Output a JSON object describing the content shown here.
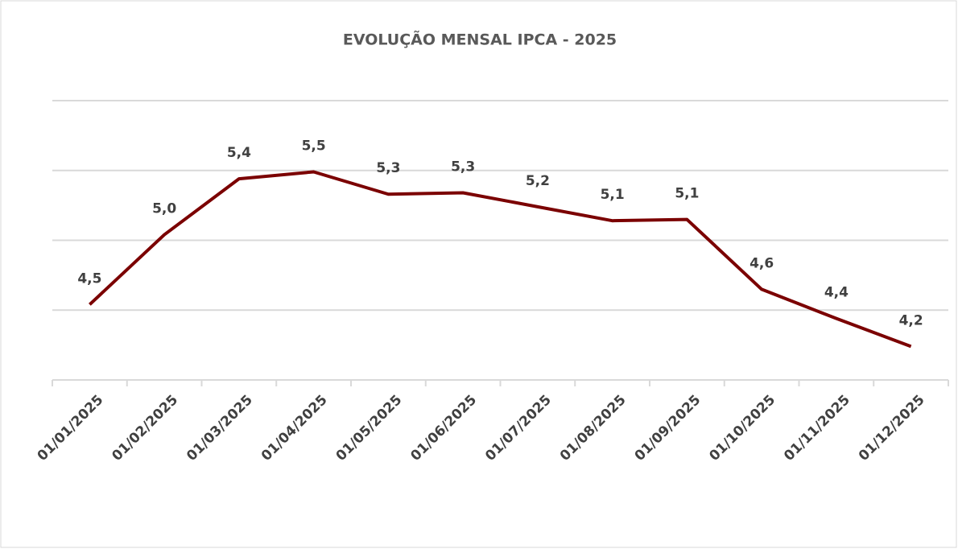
{
  "chart_data": {
    "type": "line",
    "title": "EVOLUÇÃO MENSAL IPCA - 2025",
    "categories": [
      "01/01/2025",
      "01/02/2025",
      "01/03/2025",
      "01/04/2025",
      "01/05/2025",
      "01/06/2025",
      "01/07/2025",
      "01/08/2025",
      "01/09/2025",
      "01/10/2025",
      "01/11/2025",
      "01/12/2025"
    ],
    "series": [
      {
        "name": "IPCA",
        "color": "#7b0000",
        "values": [
          4.54,
          5.04,
          5.44,
          5.49,
          5.33,
          5.34,
          5.24,
          5.14,
          5.149,
          4.649,
          4.44,
          4.24
        ],
        "value_labels": [
          "4,5",
          "5,0",
          "5,4",
          "5,5",
          "5,3",
          "5,3",
          "5,2",
          "5,1",
          "5,1",
          "4,6",
          "4,4",
          "4,2"
        ]
      }
    ],
    "ylim": [
      4,
      6
    ],
    "yticks": [
      4,
      4.5,
      5,
      5.5,
      6
    ],
    "grid": true
  }
}
